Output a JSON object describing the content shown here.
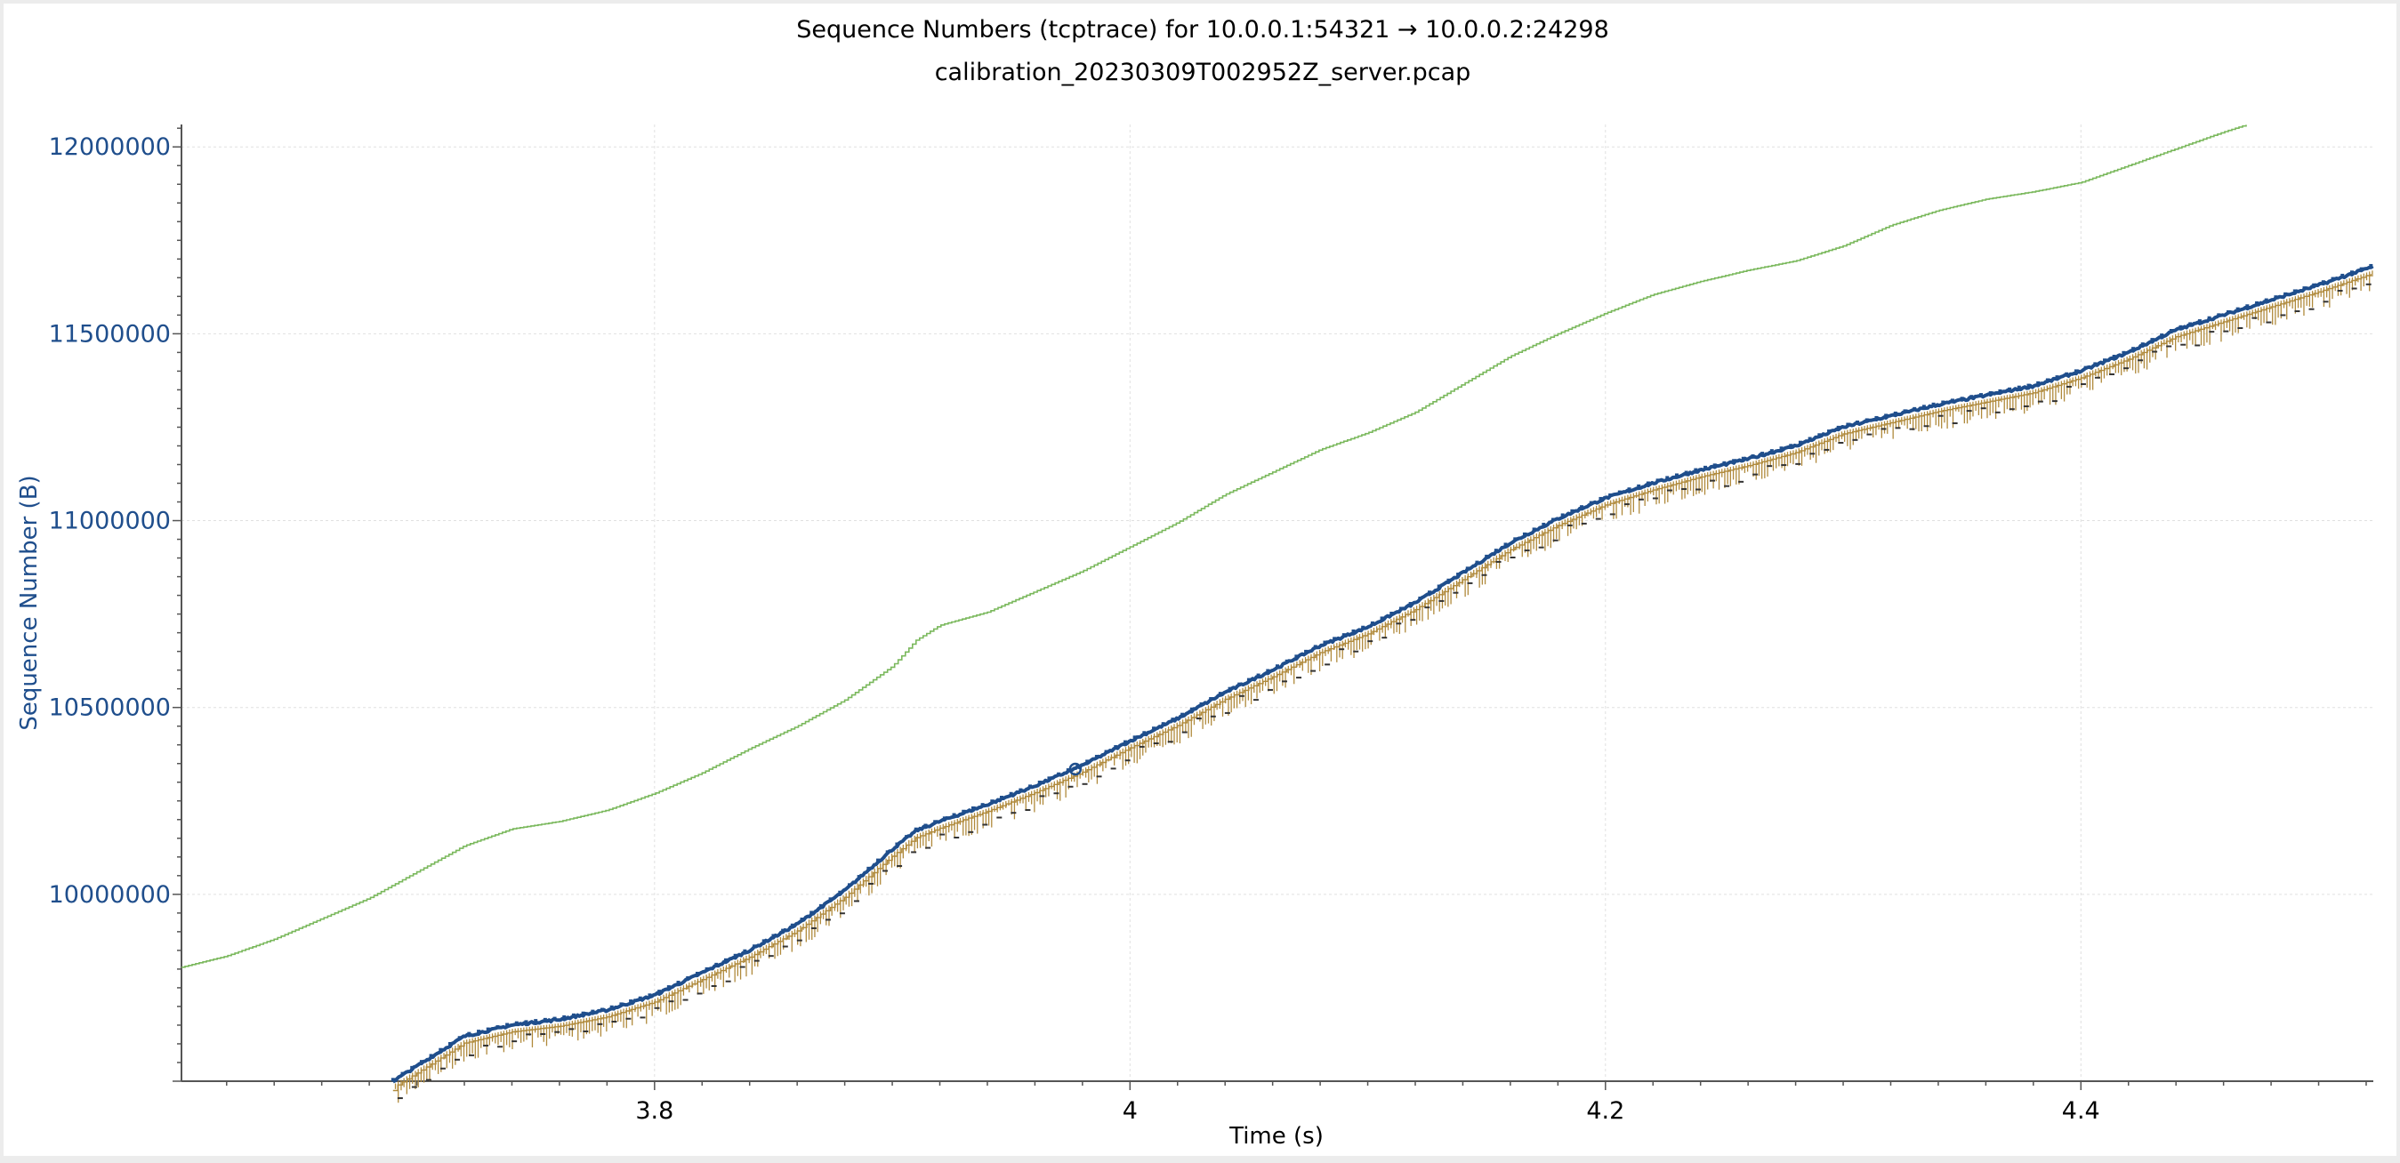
{
  "title": "Sequence Numbers (tcptrace) for 10.0.0.1:54321 → 10.0.0.2:24298",
  "subtitle": "calibration_20230309T002952Z_server.pcap",
  "colors": {
    "y_axis_text": "#1f4e8c",
    "segments": "#1f4e8c",
    "ack_line": "#b08a3c",
    "rwin_line": "#7ab85c",
    "sack_marks": "#333333",
    "grid": "#e0e0e0",
    "axis": "#555555"
  },
  "chart_data": {
    "type": "line",
    "title": "Sequence Numbers (tcptrace) for 10.0.0.1:54321 → 10.0.0.2:24298",
    "subtitle": "calibration_20230309T002952Z_server.pcap",
    "xlabel": "Time (s)",
    "ylabel": "Sequence Number (B)",
    "xlim": [
      3.601,
      4.523
    ],
    "ylim": [
      9500000,
      12060000
    ],
    "x_ticks": [
      3.8,
      4,
      4.2,
      4.4
    ],
    "x_tick_labels": [
      "3.8",
      "4",
      "4.2",
      "4.4"
    ],
    "y_ticks": [
      10000000,
      10500000,
      11000000,
      11500000,
      12000000
    ],
    "y_tick_labels": [
      "10000000",
      "10500000",
      "11000000",
      "11500000",
      "12000000"
    ],
    "grid": true,
    "series": [
      {
        "style": "rwin-staircase",
        "points": [
          [
            3.601,
            9805000
          ],
          [
            3.62,
            9835000
          ],
          [
            3.64,
            9880000
          ],
          [
            3.66,
            9935000
          ],
          [
            3.68,
            9990000
          ],
          [
            3.7,
            10060000
          ],
          [
            3.72,
            10130000
          ],
          [
            3.74,
            10175000
          ],
          [
            3.76,
            10195000
          ],
          [
            3.78,
            10225000
          ],
          [
            3.8,
            10270000
          ],
          [
            3.82,
            10325000
          ],
          [
            3.84,
            10390000
          ],
          [
            3.86,
            10450000
          ],
          [
            3.88,
            10520000
          ],
          [
            3.9,
            10610000
          ],
          [
            3.91,
            10680000
          ],
          [
            3.92,
            10720000
          ],
          [
            3.94,
            10755000
          ],
          [
            3.96,
            10810000
          ],
          [
            3.98,
            10865000
          ],
          [
            4.0,
            10930000
          ],
          [
            4.02,
            10995000
          ],
          [
            4.04,
            11070000
          ],
          [
            4.06,
            11130000
          ],
          [
            4.08,
            11190000
          ],
          [
            4.1,
            11235000
          ],
          [
            4.12,
            11290000
          ],
          [
            4.14,
            11365000
          ],
          [
            4.16,
            11440000
          ],
          [
            4.18,
            11500000
          ],
          [
            4.2,
            11555000
          ],
          [
            4.22,
            11605000
          ],
          [
            4.24,
            11640000
          ],
          [
            4.26,
            11670000
          ],
          [
            4.28,
            11695000
          ],
          [
            4.3,
            11735000
          ],
          [
            4.32,
            11790000
          ],
          [
            4.34,
            11830000
          ],
          [
            4.36,
            11860000
          ],
          [
            4.38,
            11880000
          ],
          [
            4.4,
            11905000
          ],
          [
            4.42,
            11950000
          ],
          [
            4.44,
            11995000
          ],
          [
            4.46,
            12040000
          ],
          [
            4.47,
            12060000
          ]
        ]
      },
      {
        "style": "segments",
        "points": [
          [
            3.69,
            9500000
          ],
          [
            3.7,
            9540000
          ],
          [
            3.71,
            9580000
          ],
          [
            3.72,
            9620000
          ],
          [
            3.74,
            9650000
          ],
          [
            3.76,
            9665000
          ],
          [
            3.78,
            9690000
          ],
          [
            3.8,
            9730000
          ],
          [
            3.82,
            9790000
          ],
          [
            3.84,
            9850000
          ],
          [
            3.86,
            9920000
          ],
          [
            3.88,
            10010000
          ],
          [
            3.9,
            10120000
          ],
          [
            3.91,
            10170000
          ],
          [
            3.92,
            10195000
          ],
          [
            3.94,
            10240000
          ],
          [
            3.96,
            10290000
          ],
          [
            3.98,
            10345000
          ],
          [
            4.0,
            10410000
          ],
          [
            4.02,
            10470000
          ],
          [
            4.04,
            10540000
          ],
          [
            4.06,
            10600000
          ],
          [
            4.08,
            10665000
          ],
          [
            4.1,
            10715000
          ],
          [
            4.12,
            10780000
          ],
          [
            4.14,
            10860000
          ],
          [
            4.16,
            10940000
          ],
          [
            4.18,
            11005000
          ],
          [
            4.2,
            11060000
          ],
          [
            4.22,
            11100000
          ],
          [
            4.24,
            11135000
          ],
          [
            4.26,
            11165000
          ],
          [
            4.28,
            11200000
          ],
          [
            4.3,
            11250000
          ],
          [
            4.32,
            11280000
          ],
          [
            4.34,
            11310000
          ],
          [
            4.36,
            11335000
          ],
          [
            4.38,
            11360000
          ],
          [
            4.4,
            11400000
          ],
          [
            4.42,
            11450000
          ],
          [
            4.44,
            11510000
          ],
          [
            4.46,
            11550000
          ],
          [
            4.48,
            11590000
          ],
          [
            4.5,
            11630000
          ],
          [
            4.523,
            11680000
          ]
        ]
      }
    ],
    "annotations": [
      {
        "label": "selected-segment-marker",
        "x": 3.977,
        "y": 10335000
      }
    ]
  }
}
